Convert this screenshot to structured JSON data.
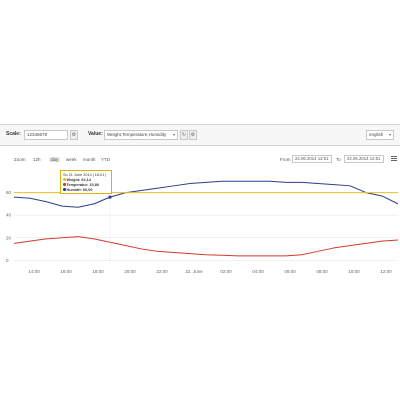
{
  "toolbar": {
    "scale_label": "Scale:",
    "scale_value": "12345678",
    "value_label": "Value:",
    "value_value": "Weight,Temperature,Humidity",
    "language_value": "english"
  },
  "zoom": {
    "label": "Zoom",
    "buttons": [
      "12h",
      "day",
      "week",
      "month",
      "YTD"
    ],
    "active": "day"
  },
  "range": {
    "from_label": "From",
    "from_value": "22.06.2014 12:51",
    "to_label": "To",
    "to_value": "22.06.2014 12:51"
  },
  "tooltip": {
    "title": "So 21 June 2014 | 16:01 |",
    "weight": "Weight: 62,14",
    "temperature": "Temperatur: 15,80",
    "humidity": "Humidit: 60,00"
  },
  "colors": {
    "weight": "#2b3d8f",
    "temperature": "#d13b2e",
    "humidity": "#e8c020"
  },
  "chart_data": {
    "type": "line",
    "y_ticks": [
      0,
      20,
      40,
      60
    ],
    "ylim": [
      -5,
      80
    ],
    "x_ticks": [
      "14:00",
      "16:00",
      "18:00",
      "20:00",
      "22:00",
      "22. June",
      "02:00",
      "04:00",
      "06:00",
      "08:00",
      "10:00",
      "12:00"
    ],
    "x": [
      0,
      1,
      2,
      3,
      4,
      5,
      6,
      7,
      8,
      9,
      10,
      11,
      12,
      13,
      14,
      15,
      16,
      17,
      18,
      19,
      20,
      21,
      22,
      23,
      24
    ],
    "series": [
      {
        "name": "Weight",
        "values": [
          56,
          55,
          52,
          48,
          47,
          50,
          56,
          60,
          62,
          64,
          66,
          68,
          69,
          70,
          70,
          70,
          70,
          69,
          69,
          68,
          67,
          66,
          60,
          57,
          50
        ]
      },
      {
        "name": "Temperatur",
        "values": [
          15,
          17,
          19,
          20,
          21,
          19,
          16,
          13,
          10,
          8,
          7,
          6,
          5,
          4.5,
          4,
          4,
          4,
          4,
          5,
          8,
          11,
          13,
          15,
          17,
          18
        ]
      },
      {
        "name": "Humidit",
        "values": [
          60,
          60,
          60,
          60,
          60,
          60,
          60,
          60,
          60,
          60,
          60,
          60,
          60,
          60,
          60,
          60,
          60,
          60,
          60,
          60,
          60,
          60,
          60,
          60,
          60
        ]
      }
    ]
  }
}
